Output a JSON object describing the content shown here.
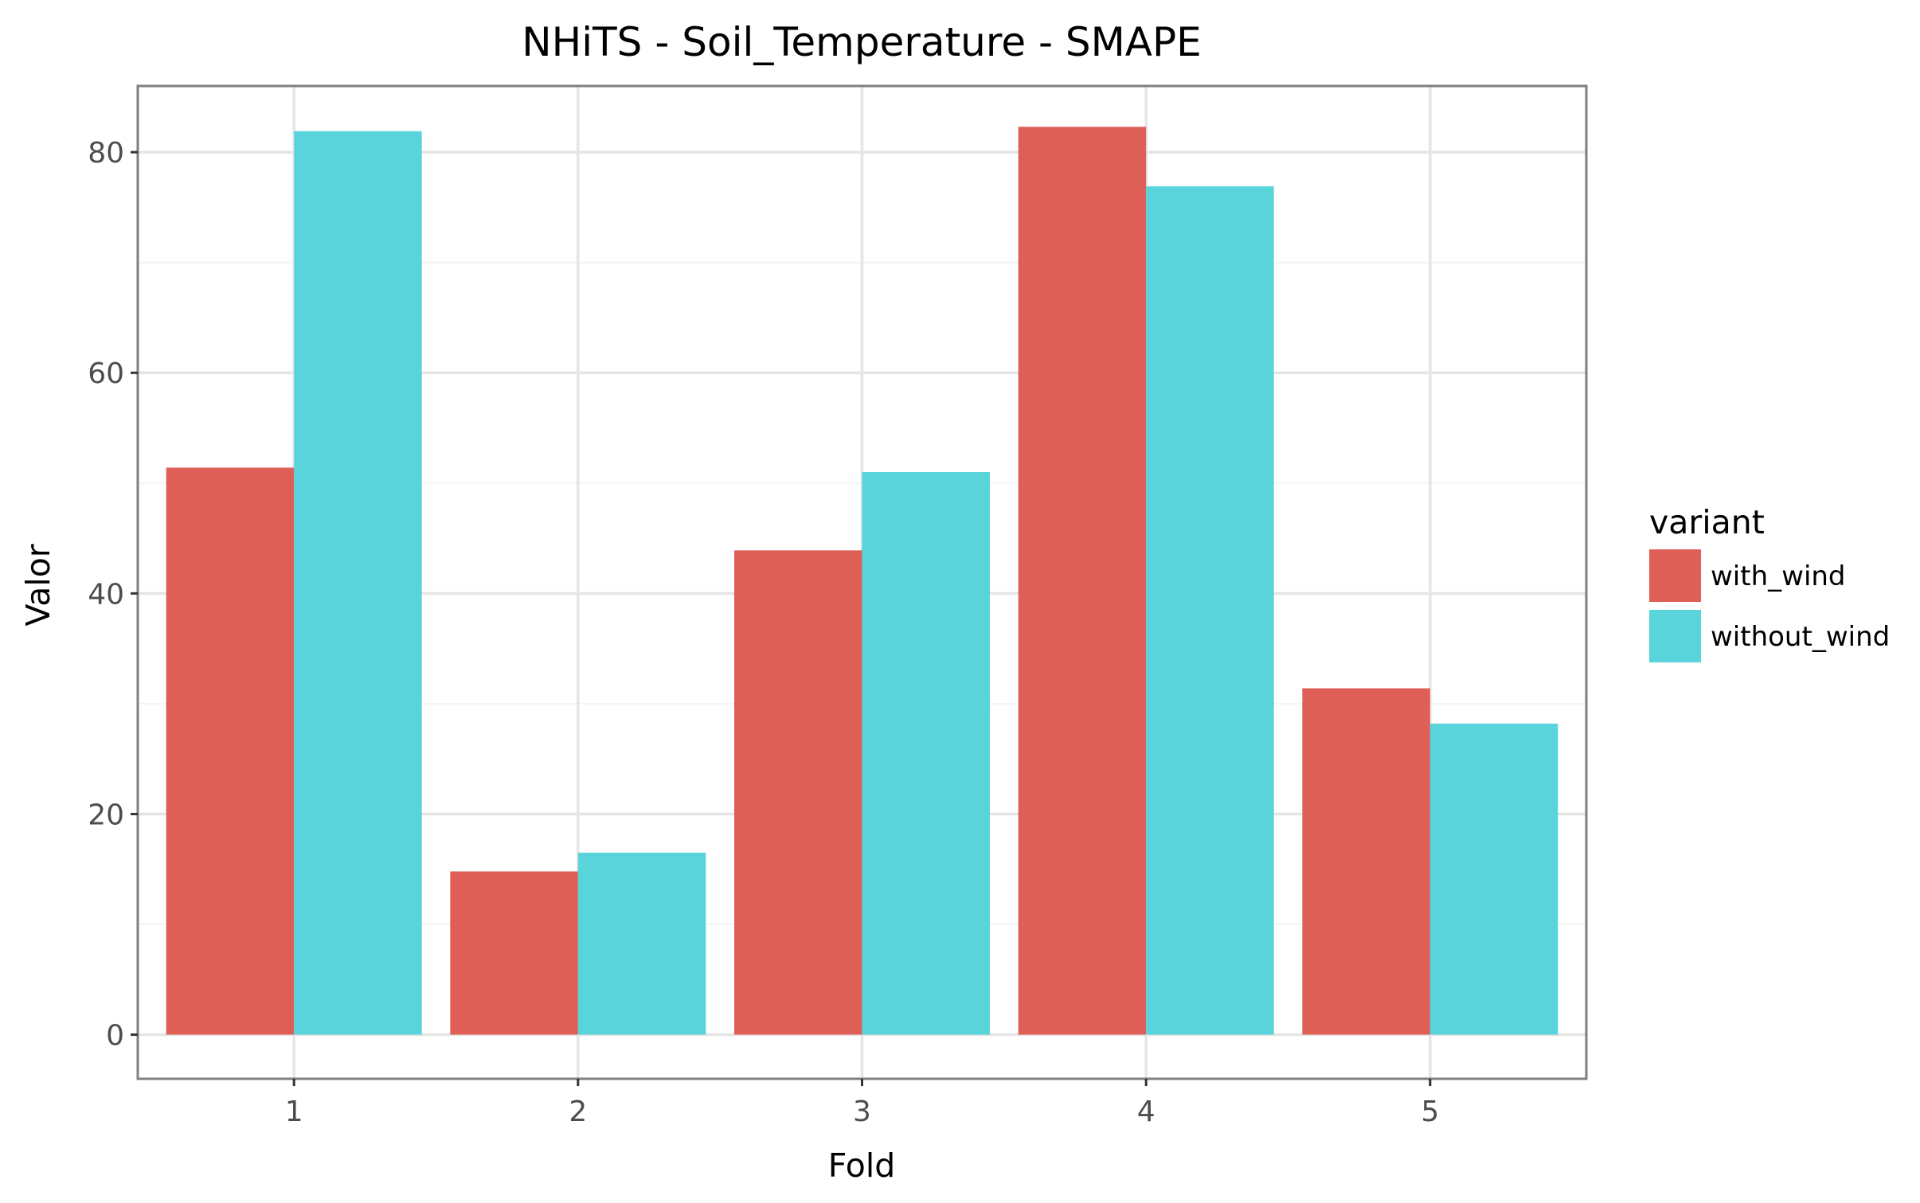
{
  "chart_data": {
    "type": "bar",
    "title": "NHiTS - Soil_Temperature - SMAPE",
    "xlabel": "Fold",
    "ylabel": "Valor",
    "categories": [
      "1",
      "2",
      "3",
      "4",
      "5"
    ],
    "series": [
      {
        "name": "with_wind",
        "values": [
          51.4,
          14.8,
          43.9,
          82.3,
          31.4
        ],
        "color": "#de5f57"
      },
      {
        "name": "without_wind",
        "values": [
          81.9,
          16.5,
          51.0,
          76.9,
          28.2
        ],
        "color": "#59d4db"
      }
    ],
    "ylim": [
      -4,
      86
    ],
    "yticks": [
      0,
      20,
      40,
      60,
      80
    ],
    "ytick_labels": [
      "0",
      "20",
      "40",
      "60",
      "80"
    ],
    "legend": {
      "title": "variant",
      "position": "right"
    },
    "grid": true
  },
  "colors": {
    "panel_border": "#7f7f7f",
    "grid_major": "#e5e5e5",
    "grid_minor": "#f4f4f4",
    "tick_text": "#4d4d4d"
  }
}
